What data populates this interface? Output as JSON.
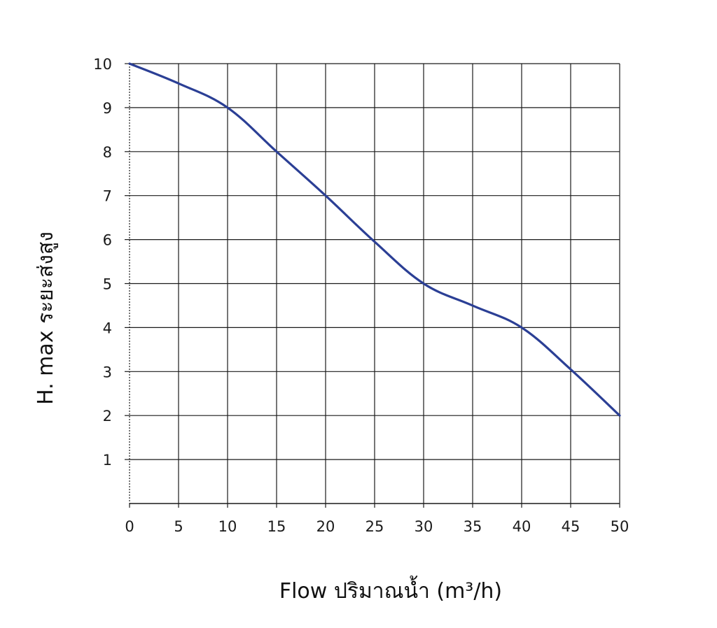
{
  "chart_data": {
    "type": "line",
    "title": "",
    "xlabel": "Flow ปริมาณน้ำ (m³/h)",
    "ylabel": "H. max ระยะส่งสูง",
    "xlim": [
      0,
      50
    ],
    "ylim": [
      0,
      10
    ],
    "x_ticks": [
      "0",
      "5",
      "10",
      "15",
      "20",
      "25",
      "30",
      "35",
      "40",
      "45",
      "50"
    ],
    "y_ticks": [
      "1",
      "2",
      "3",
      "4",
      "5",
      "6",
      "7",
      "8",
      "9",
      "10"
    ],
    "grid": true,
    "series": [
      {
        "x": [
          0,
          5,
          10,
          15,
          20,
          25,
          30,
          35,
          40,
          45,
          50
        ],
        "y": [
          10,
          9.55,
          9,
          8,
          7,
          5.95,
          5,
          4.5,
          4,
          3.05,
          2
        ]
      }
    ],
    "colors": {
      "line": "#2b3f95",
      "grid": "#1a1a1a"
    }
  }
}
